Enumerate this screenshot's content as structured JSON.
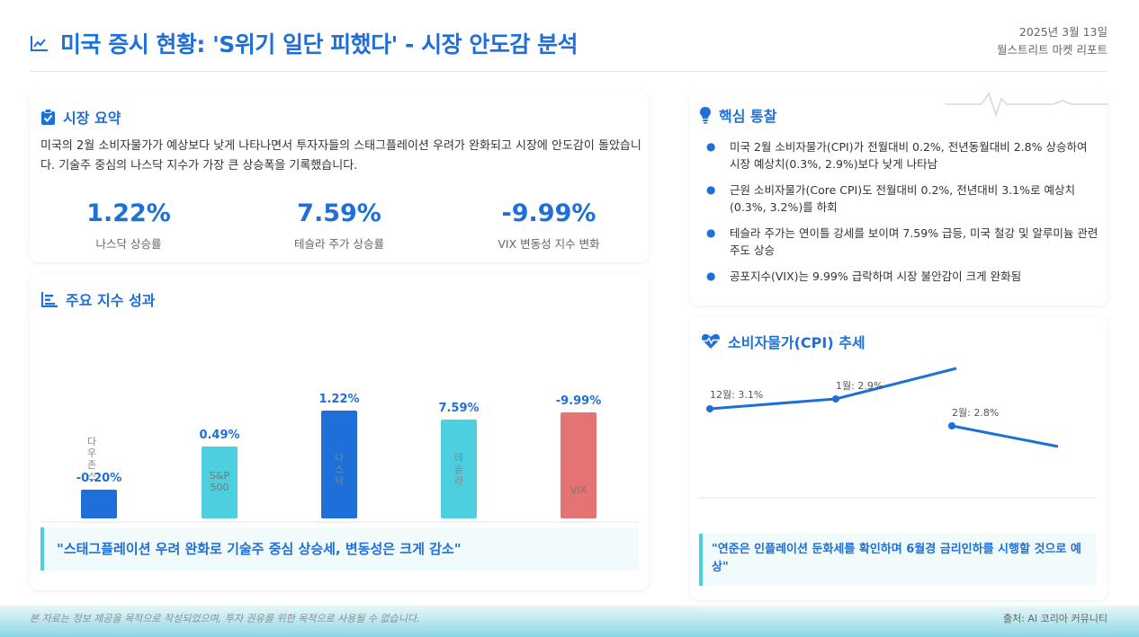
{
  "header": {
    "title": "미국 증시 현황: 'S위기 일단 피했다' - 시장 안도감 분석",
    "date": "2025년 3월 13일",
    "source": "월스트리트 마켓 리포트"
  },
  "summary": {
    "title": "시장 요약",
    "text": "미국의 2월 소비자물가가 예상보다 낮게 나타나면서 투자자들의 스태그플레이션 우려가 완화되고 시장에 안도감이 돌았습니다. 기술주 중심의 나스닥 지수가 가장 큰 상승폭을 기록했습니다.",
    "stats": [
      {
        "value": "1.22%",
        "label": "나스닥 상승률"
      },
      {
        "value": "7.59%",
        "label": "테슬라 주가 상승률"
      },
      {
        "value": "-9.99%",
        "label": "VIX 변동성 지수 변화"
      }
    ]
  },
  "indices": {
    "title": "주요 지수 성과",
    "quote": "\"스태그플레이션 우려 완화로 기술주 중심 상승세, 변동성은 크게 감소\""
  },
  "insights": {
    "title": "핵심 통찰",
    "bullet": "●",
    "items": [
      "미국 2월 소비자물가(CPI)가 전월대비 0.2%, 전년동월대비 2.8% 상승하여 시장 예상치(0.3%, 2.9%)보다 낮게 나타남",
      "근원 소비자물가(Core CPI)도 전월대비 0.2%, 전년대비 3.1%로 예상치(0.3%, 3.2%)를 하회",
      "테슬라 주가는 연이틀 강세를 보이며 7.59% 급등, 미국 철강 및 알루미늄 관련주도 상승",
      "공포지수(VIX)는 9.99% 급락하며 시장 불안감이 크게 완화됨"
    ]
  },
  "cpi": {
    "title": "소비자물가(CPI) 추세",
    "quote": "\"연준은 인플레이션 둔화세를 확인하며 6월경 금리인하를 시행할 것으로 예상\""
  },
  "footer": {
    "disclaimer": "본 자료는 정보 제공을 목적으로 작성되었으며, 투자 권유를 위한 목적으로 사용될 수 없습니다.",
    "credit": "출처: AI 코리아 커뮤니티"
  },
  "colors": {
    "accent": "#1e6fd9",
    "teal": "#4ecfe0",
    "red": "#e57373",
    "text": "#333333"
  },
  "chart_data": [
    {
      "type": "bar",
      "categories": [
        "다우존스",
        "S&P 500",
        "나스닥",
        "테슬라",
        "VIX"
      ],
      "values": [
        -0.2,
        0.49,
        1.22,
        7.59,
        -9.99
      ],
      "value_labels": [
        "-0.20%",
        "0.49%",
        "1.22%",
        "7.59%",
        "-9.99%"
      ],
      "colors": [
        "#1e6fd9",
        "#4ecfe0",
        "#1e6fd9",
        "#4ecfe0",
        "#e57373"
      ],
      "xlabel": "",
      "ylabel": "",
      "grid": false
    },
    {
      "type": "line",
      "categories": [
        "12월",
        "1월",
        "2월"
      ],
      "values": [
        3.1,
        2.9,
        2.8
      ],
      "point_labels": [
        "12월: 3.1%",
        "1월: 2.9%",
        "2월: 2.8%"
      ],
      "grid": false
    }
  ]
}
